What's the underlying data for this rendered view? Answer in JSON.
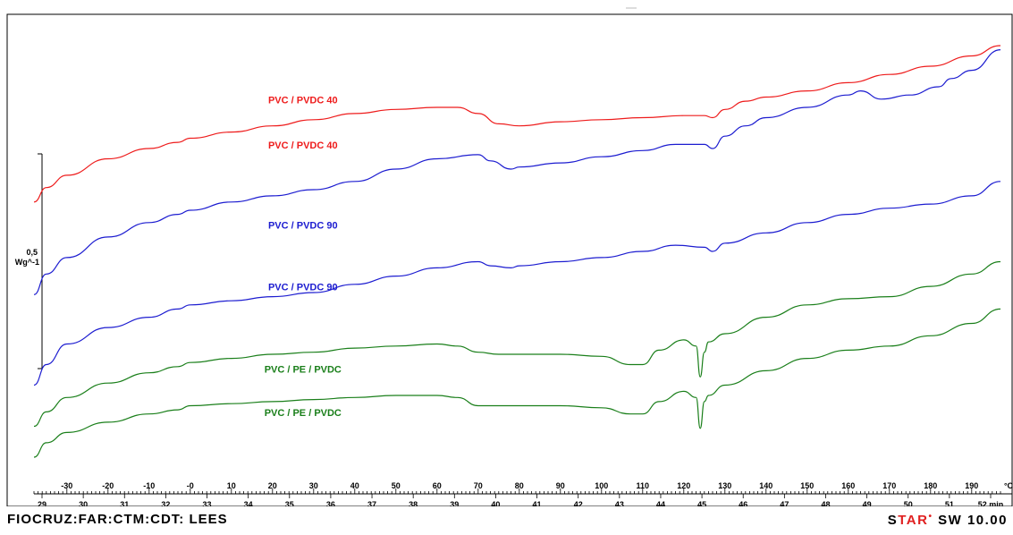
{
  "footer": {
    "left": "FIOCRUZ:FAR:CTM:CDT: LEES",
    "star_prefix": "S",
    "star_red": "TAR",
    "star_dot": "•",
    "star_suffix": " SW 10.00"
  },
  "chart_data": {
    "type": "line",
    "scale_bar": {
      "value_label": "0,5",
      "unit_label": "Wg^-1"
    },
    "temperature_axis": {
      "unit": "°C",
      "ticks": [
        -30,
        -20,
        -10,
        0,
        10,
        20,
        30,
        40,
        50,
        60,
        70,
        80,
        90,
        100,
        110,
        120,
        130,
        140,
        150,
        160,
        170,
        180,
        190
      ],
      "tick_labels": [
        "-30",
        "-20",
        "-10",
        "-0",
        "10",
        "20",
        "30",
        "40",
        "50",
        "60",
        "70",
        "80",
        "90",
        "100",
        "110",
        "120",
        "130",
        "140",
        "150",
        "160",
        "170",
        "180",
        "190"
      ]
    },
    "time_axis": {
      "unit": "min",
      "ticks": [
        29,
        30,
        31,
        32,
        33,
        34,
        35,
        36,
        37,
        38,
        39,
        40,
        41,
        42,
        43,
        44,
        45,
        46,
        47,
        48,
        49,
        50,
        51,
        52
      ],
      "tick_labels": [
        "29",
        "30",
        "31",
        "32",
        "33",
        "34",
        "35",
        "36",
        "37",
        "38",
        "39",
        "40",
        "41",
        "42",
        "43",
        "44",
        "45",
        "46",
        "47",
        "48",
        "49",
        "50",
        "51",
        "52 min"
      ]
    },
    "series": [
      {
        "name": "PVC / PVDC 40",
        "color": "#ee1c1c",
        "points": [
          [
            -38,
            0.54
          ],
          [
            -35,
            0.61
          ],
          [
            -30,
            0.67
          ],
          [
            -20,
            0.75
          ],
          [
            -10,
            0.8
          ],
          [
            -3,
            0.83
          ],
          [
            0,
            0.85
          ],
          [
            10,
            0.88
          ],
          [
            20,
            0.91
          ],
          [
            30,
            0.94
          ],
          [
            40,
            0.97
          ],
          [
            50,
            0.99
          ],
          [
            60,
            1.0
          ],
          [
            65,
            1.0
          ],
          [
            70,
            0.97
          ],
          [
            75,
            0.92
          ],
          [
            80,
            0.91
          ],
          [
            90,
            0.93
          ],
          [
            100,
            0.94
          ],
          [
            110,
            0.95
          ],
          [
            120,
            0.96
          ],
          [
            125,
            0.96
          ],
          [
            127,
            0.95
          ],
          [
            130,
            0.99
          ],
          [
            135,
            1.03
          ],
          [
            140,
            1.05
          ],
          [
            150,
            1.08
          ],
          [
            160,
            1.12
          ],
          [
            170,
            1.16
          ],
          [
            180,
            1.2
          ],
          [
            190,
            1.25
          ],
          [
            197,
            1.3
          ]
        ]
      },
      {
        "name": "PVC / PVDC 40",
        "color": "#1c1cd0",
        "points": [
          [
            -38,
            0.09
          ],
          [
            -35,
            0.19
          ],
          [
            -30,
            0.27
          ],
          [
            -20,
            0.37
          ],
          [
            -10,
            0.44
          ],
          [
            -3,
            0.48
          ],
          [
            0,
            0.5
          ],
          [
            10,
            0.54
          ],
          [
            20,
            0.57
          ],
          [
            30,
            0.6
          ],
          [
            40,
            0.64
          ],
          [
            50,
            0.7
          ],
          [
            60,
            0.75
          ],
          [
            70,
            0.77
          ],
          [
            73,
            0.74
          ],
          [
            78,
            0.7
          ],
          [
            80,
            0.71
          ],
          [
            90,
            0.73
          ],
          [
            100,
            0.76
          ],
          [
            110,
            0.79
          ],
          [
            118,
            0.82
          ],
          [
            125,
            0.82
          ],
          [
            127,
            0.8
          ],
          [
            130,
            0.86
          ],
          [
            135,
            0.91
          ],
          [
            140,
            0.95
          ],
          [
            150,
            1.0
          ],
          [
            160,
            1.06
          ],
          [
            163,
            1.08
          ],
          [
            168,
            1.04
          ],
          [
            175,
            1.06
          ],
          [
            182,
            1.1
          ],
          [
            185,
            1.14
          ],
          [
            190,
            1.18
          ],
          [
            197,
            1.28
          ]
        ]
      },
      {
        "name": "PVC / PVDC 90",
        "color": "#1c1cd0",
        "points": [
          [
            -38,
            -0.35
          ],
          [
            -35,
            -0.25
          ],
          [
            -30,
            -0.15
          ],
          [
            -20,
            -0.07
          ],
          [
            -10,
            -0.02
          ],
          [
            -3,
            0.02
          ],
          [
            0,
            0.04
          ],
          [
            10,
            0.06
          ],
          [
            20,
            0.08
          ],
          [
            30,
            0.1
          ],
          [
            40,
            0.14
          ],
          [
            50,
            0.18
          ],
          [
            60,
            0.22
          ],
          [
            70,
            0.25
          ],
          [
            73,
            0.23
          ],
          [
            78,
            0.22
          ],
          [
            80,
            0.23
          ],
          [
            90,
            0.25
          ],
          [
            100,
            0.27
          ],
          [
            110,
            0.3
          ],
          [
            118,
            0.33
          ],
          [
            125,
            0.32
          ],
          [
            127,
            0.3
          ],
          [
            130,
            0.34
          ],
          [
            140,
            0.39
          ],
          [
            150,
            0.44
          ],
          [
            160,
            0.48
          ],
          [
            170,
            0.51
          ],
          [
            180,
            0.53
          ],
          [
            190,
            0.57
          ],
          [
            197,
            0.64
          ]
        ]
      },
      {
        "name": "PVC / PVDC 90",
        "color": "#1c1cd0",
        "points": []
      },
      {
        "name": "PVC / PE / PVDC",
        "color": "#1a7f1a",
        "points": [
          [
            -38,
            -0.55
          ],
          [
            -35,
            -0.48
          ],
          [
            -30,
            -0.41
          ],
          [
            -20,
            -0.34
          ],
          [
            -10,
            -0.29
          ],
          [
            -3,
            -0.26
          ],
          [
            0,
            -0.24
          ],
          [
            10,
            -0.22
          ],
          [
            20,
            -0.2
          ],
          [
            30,
            -0.19
          ],
          [
            40,
            -0.17
          ],
          [
            50,
            -0.16
          ],
          [
            60,
            -0.15
          ],
          [
            65,
            -0.16
          ],
          [
            70,
            -0.19
          ],
          [
            75,
            -0.2
          ],
          [
            90,
            -0.2
          ],
          [
            100,
            -0.21
          ],
          [
            107,
            -0.25
          ],
          [
            110,
            -0.25
          ],
          [
            114,
            -0.18
          ],
          [
            120,
            -0.13
          ],
          [
            123,
            -0.16
          ],
          [
            124,
            -0.31
          ],
          [
            125,
            -0.19
          ],
          [
            126,
            -0.14
          ],
          [
            130,
            -0.1
          ],
          [
            140,
            -0.02
          ],
          [
            150,
            0.04
          ],
          [
            160,
            0.07
          ],
          [
            170,
            0.08
          ],
          [
            180,
            0.13
          ],
          [
            190,
            0.19
          ],
          [
            197,
            0.25
          ]
        ]
      },
      {
        "name": "PVC / PE / PVDC",
        "color": "#1a7f1a",
        "points": [
          [
            -38,
            -0.7
          ],
          [
            -35,
            -0.63
          ],
          [
            -30,
            -0.58
          ],
          [
            -20,
            -0.53
          ],
          [
            -10,
            -0.49
          ],
          [
            -3,
            -0.47
          ],
          [
            0,
            -0.45
          ],
          [
            10,
            -0.44
          ],
          [
            20,
            -0.43
          ],
          [
            30,
            -0.42
          ],
          [
            40,
            -0.41
          ],
          [
            50,
            -0.4
          ],
          [
            60,
            -0.4
          ],
          [
            65,
            -0.41
          ],
          [
            70,
            -0.45
          ],
          [
            75,
            -0.45
          ],
          [
            90,
            -0.45
          ],
          [
            100,
            -0.46
          ],
          [
            107,
            -0.49
          ],
          [
            110,
            -0.49
          ],
          [
            114,
            -0.43
          ],
          [
            120,
            -0.38
          ],
          [
            123,
            -0.41
          ],
          [
            124,
            -0.56
          ],
          [
            125,
            -0.43
          ],
          [
            126,
            -0.4
          ],
          [
            130,
            -0.35
          ],
          [
            140,
            -0.28
          ],
          [
            150,
            -0.22
          ],
          [
            160,
            -0.18
          ],
          [
            170,
            -0.16
          ],
          [
            180,
            -0.11
          ],
          [
            190,
            -0.05
          ],
          [
            197,
            0.02
          ]
        ]
      }
    ],
    "labels": [
      {
        "text": "PVC / PVDC 40",
        "color": "#ee1c1c",
        "at": [
          10,
          1.02
        ]
      },
      {
        "text": "PVC / PVDC 40",
        "color": "#ee1c1c",
        "at": [
          10,
          0.8
        ]
      },
      {
        "text": "PVC / PVDC 90",
        "color": "#1c1cd0",
        "at": [
          10,
          0.41
        ]
      },
      {
        "text": "PVC / PVDC 90",
        "color": "#1c1cd0",
        "at": [
          10,
          0.11
        ]
      },
      {
        "text": "PVC / PE / PVDC",
        "color": "#1a7f1a",
        "at": [
          10,
          -0.29
        ]
      },
      {
        "text": "PVC / PE / PVDC",
        "color": "#1a7f1a",
        "at": [
          10,
          -0.5
        ]
      }
    ]
  }
}
